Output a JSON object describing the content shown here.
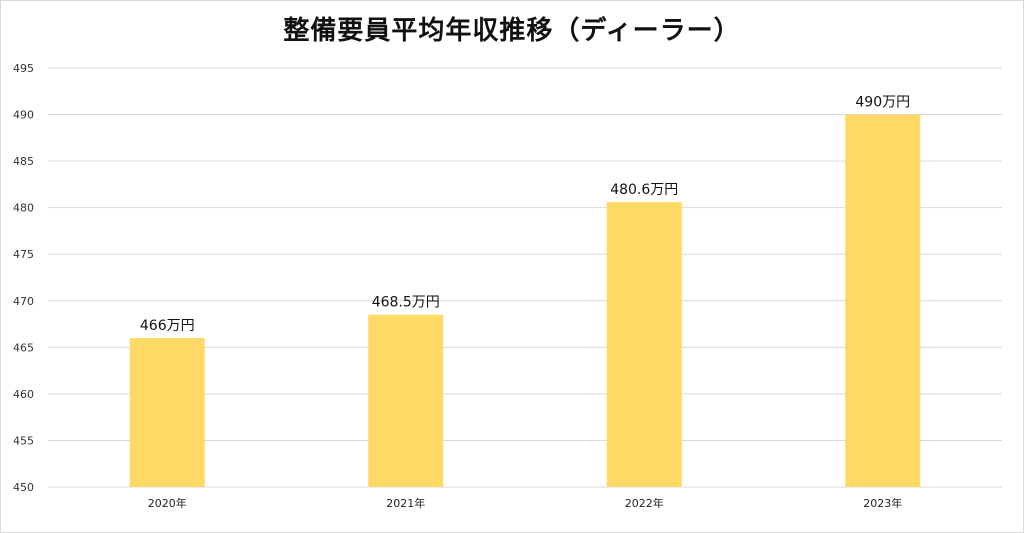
{
  "chart_data": {
    "type": "bar",
    "title": "整備要員平均年収推移（ディーラー）",
    "xlabel": "",
    "ylabel": "",
    "categories": [
      "2020年",
      "2021年",
      "2022年",
      "2023年"
    ],
    "values": [
      466,
      468.5,
      480.6,
      490
    ],
    "data_labels": [
      "466万円",
      "468.5万円",
      "480.6万円",
      "490万円"
    ],
    "ylim": [
      450,
      495
    ],
    "yticks": [
      "450",
      "455",
      "460",
      "465",
      "470",
      "475",
      "480",
      "485",
      "490",
      "495"
    ],
    "grid": true,
    "legend": "none",
    "bar_color": "#FFD966",
    "grid_color": "#d9d9d9"
  }
}
